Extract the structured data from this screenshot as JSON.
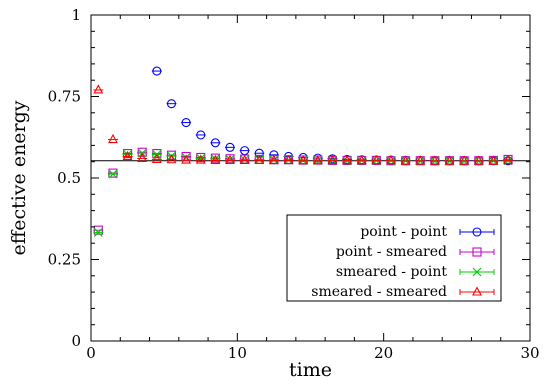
{
  "chart_data": {
    "type": "scatter",
    "title": "",
    "xlabel": "time",
    "ylabel": "effective energy",
    "xlim": [
      0,
      30
    ],
    "ylim": [
      0,
      1
    ],
    "xticks": [
      "0",
      "10",
      "20",
      "30"
    ],
    "yticks": [
      "0",
      "0.25",
      "0.5",
      "0.75",
      "1"
    ],
    "grid": false,
    "legend_position": "bottom-right",
    "reference_line": 0.553,
    "series": [
      {
        "name": "point - point",
        "color": "#0000ff",
        "marker": "circle",
        "x": [
          4.5,
          5.5,
          6.5,
          7.5,
          8.5,
          9.5,
          10.5,
          11.5,
          12.5,
          13.5,
          14.5,
          15.5,
          16.5,
          17.5,
          18.5,
          19.5,
          20.5,
          21.5,
          22.5,
          23.5,
          24.5,
          25.5,
          26.5,
          27.5,
          28.5
        ],
        "y": [
          0.828,
          0.728,
          0.67,
          0.632,
          0.608,
          0.594,
          0.584,
          0.576,
          0.571,
          0.566,
          0.563,
          0.561,
          0.559,
          0.557,
          0.556,
          0.555,
          0.555,
          0.554,
          0.554,
          0.553,
          0.553,
          0.553,
          0.553,
          0.553,
          0.553
        ]
      },
      {
        "name": "point - smeared",
        "color": "#cc00cc",
        "marker": "square",
        "x": [
          0.5,
          1.5,
          2.5,
          3.5,
          4.5,
          5.5,
          6.5,
          7.5,
          8.5,
          9.5,
          10.5,
          11.5,
          12.5,
          13.5,
          14.5,
          15.5,
          16.5,
          17.5,
          18.5,
          19.5,
          20.5,
          21.5,
          22.5,
          23.5,
          24.5,
          25.5,
          26.5,
          27.5,
          28.5
        ],
        "y": [
          0.34,
          0.515,
          0.575,
          0.579,
          0.575,
          0.57,
          0.566,
          0.563,
          0.561,
          0.559,
          0.558,
          0.557,
          0.556,
          0.556,
          0.555,
          0.555,
          0.554,
          0.554,
          0.554,
          0.554,
          0.553,
          0.553,
          0.553,
          0.553,
          0.553,
          0.553,
          0.553,
          0.554,
          0.557
        ]
      },
      {
        "name": "smeared - point",
        "color": "#00cc00",
        "marker": "cross",
        "x": [
          0.5,
          1.5,
          2.5,
          3.5,
          4.5,
          5.5,
          6.5,
          7.5,
          8.5,
          9.5,
          10.5,
          11.5,
          12.5,
          13.5,
          14.5,
          15.5,
          16.5,
          17.5,
          18.5,
          19.5,
          20.5,
          21.5,
          22.5,
          23.5,
          24.5,
          25.5,
          26.5,
          27.5,
          28.5
        ],
        "y": [
          0.333,
          0.512,
          0.572,
          0.576,
          0.572,
          0.567,
          0.563,
          0.56,
          0.559,
          0.557,
          0.556,
          0.556,
          0.555,
          0.555,
          0.554,
          0.554,
          0.554,
          0.553,
          0.553,
          0.553,
          0.553,
          0.553,
          0.552,
          0.552,
          0.552,
          0.552,
          0.552,
          0.553,
          0.553
        ]
      },
      {
        "name": "smeared - smeared",
        "color": "#ff0000",
        "marker": "triangle",
        "x": [
          0.5,
          1.5,
          2.5,
          3.5,
          4.5,
          5.5,
          6.5,
          7.5,
          8.5,
          9.5,
          10.5,
          11.5,
          12.5,
          13.5,
          14.5,
          15.5,
          16.5,
          17.5,
          18.5,
          19.5,
          20.5,
          21.5,
          22.5,
          23.5,
          24.5,
          25.5,
          26.5,
          27.5,
          28.5
        ],
        "y": [
          0.77,
          0.618,
          0.566,
          0.56,
          0.557,
          0.556,
          0.555,
          0.555,
          0.554,
          0.554,
          0.554,
          0.554,
          0.554,
          0.554,
          0.553,
          0.553,
          0.553,
          0.553,
          0.553,
          0.553,
          0.553,
          0.552,
          0.552,
          0.552,
          0.552,
          0.552,
          0.552,
          0.552,
          0.553
        ]
      }
    ]
  }
}
